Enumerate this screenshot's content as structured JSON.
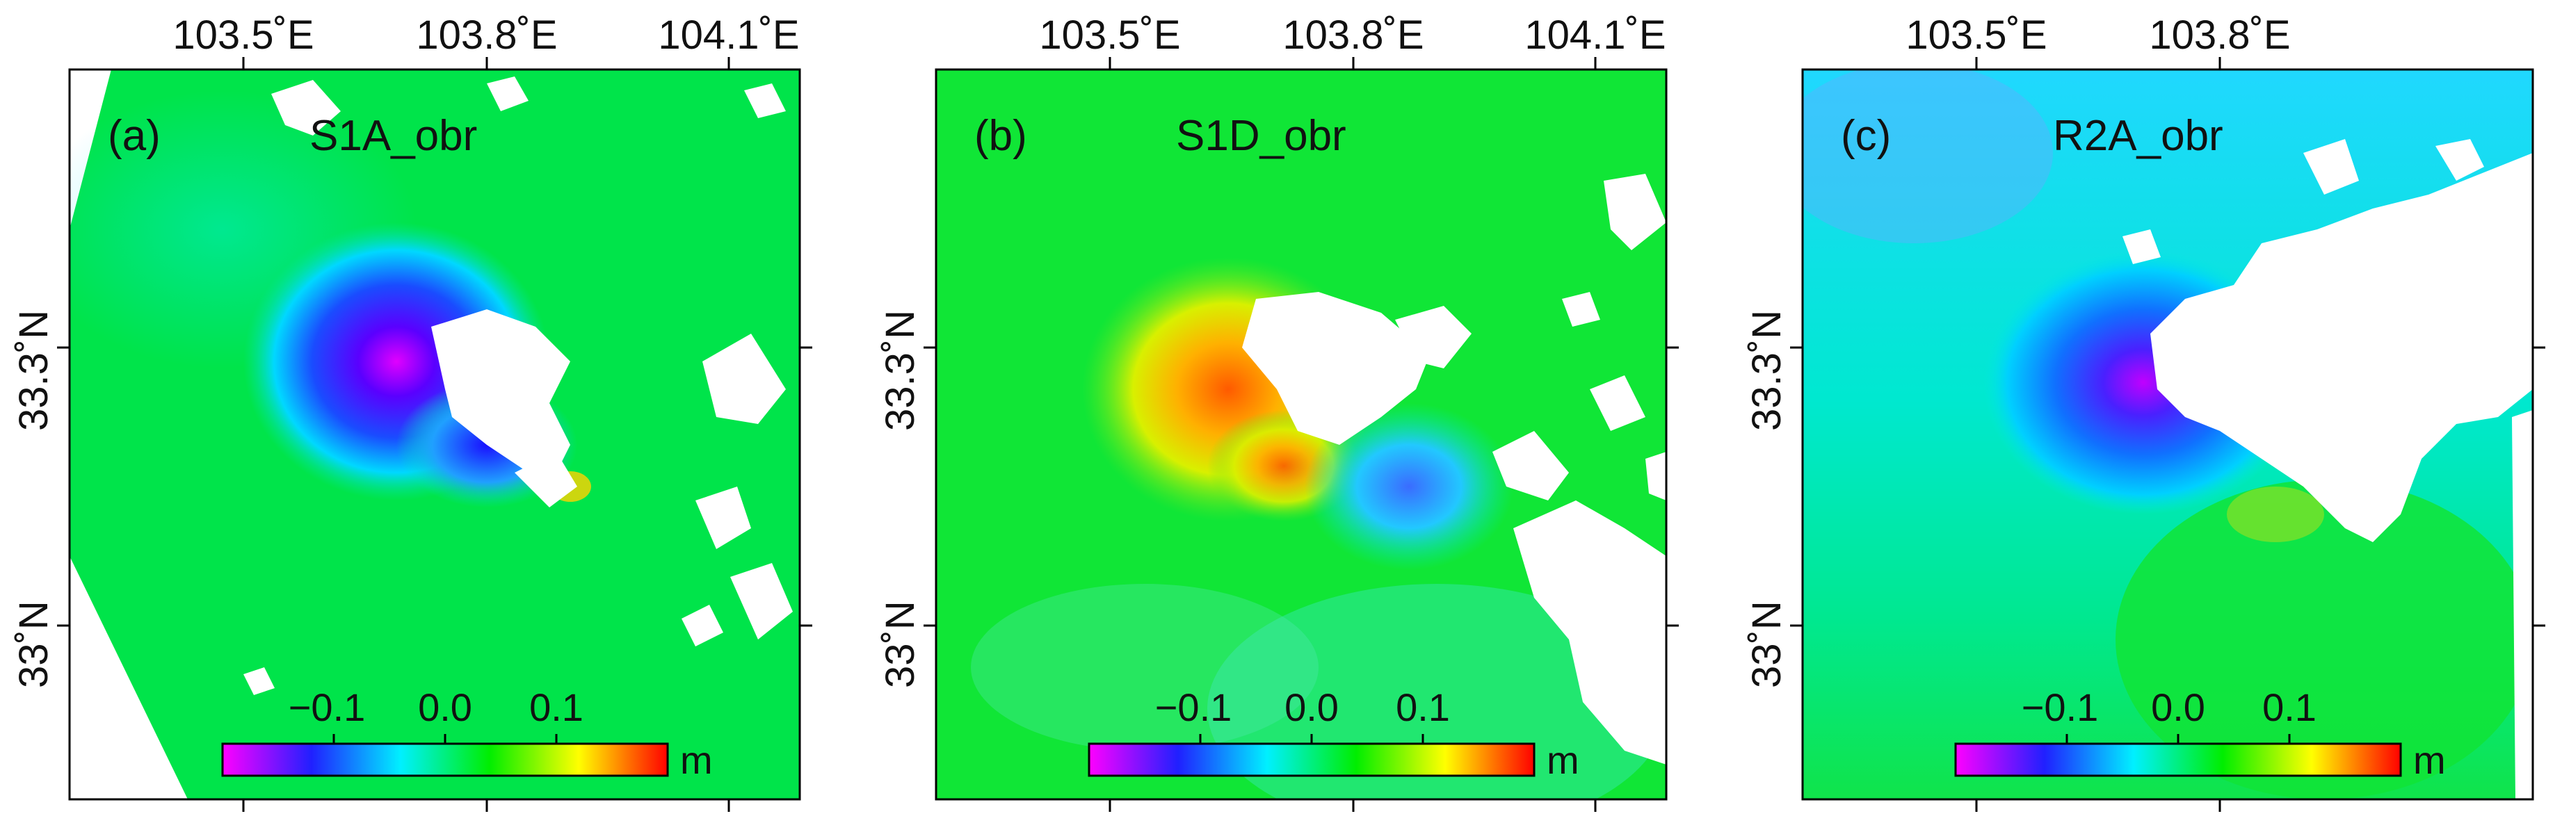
{
  "figure": {
    "colorbar": {
      "ticks": [
        "−0.1",
        "0.0",
        "0.1"
      ],
      "unit": "m",
      "range": [
        -0.18,
        0.18
      ],
      "palette": [
        "#ff00ff",
        "#2020ff",
        "#00f0ff",
        "#00ee00",
        "#ffff00",
        "#ff0000"
      ]
    },
    "panels": [
      {
        "tag": "(a)",
        "title": "S1A_obr",
        "lon_ticks": [
          "103.5˚E",
          "103.8˚E",
          "104.1˚E"
        ],
        "lat_ticks": [
          "33.3˚N",
          "33˚N"
        ]
      },
      {
        "tag": "(b)",
        "title": "S1D_obr",
        "lon_ticks": [
          "103.5˚E",
          "103.8˚E",
          "104.1˚E"
        ],
        "lat_ticks": [
          "33.3˚N",
          "33˚N"
        ]
      },
      {
        "tag": "(c)",
        "title": "R2A_obr",
        "lon_ticks": [
          "103.5˚E",
          "103.8˚E"
        ],
        "lat_ticks": [
          "33.3˚N",
          "33˚N"
        ]
      }
    ]
  }
}
